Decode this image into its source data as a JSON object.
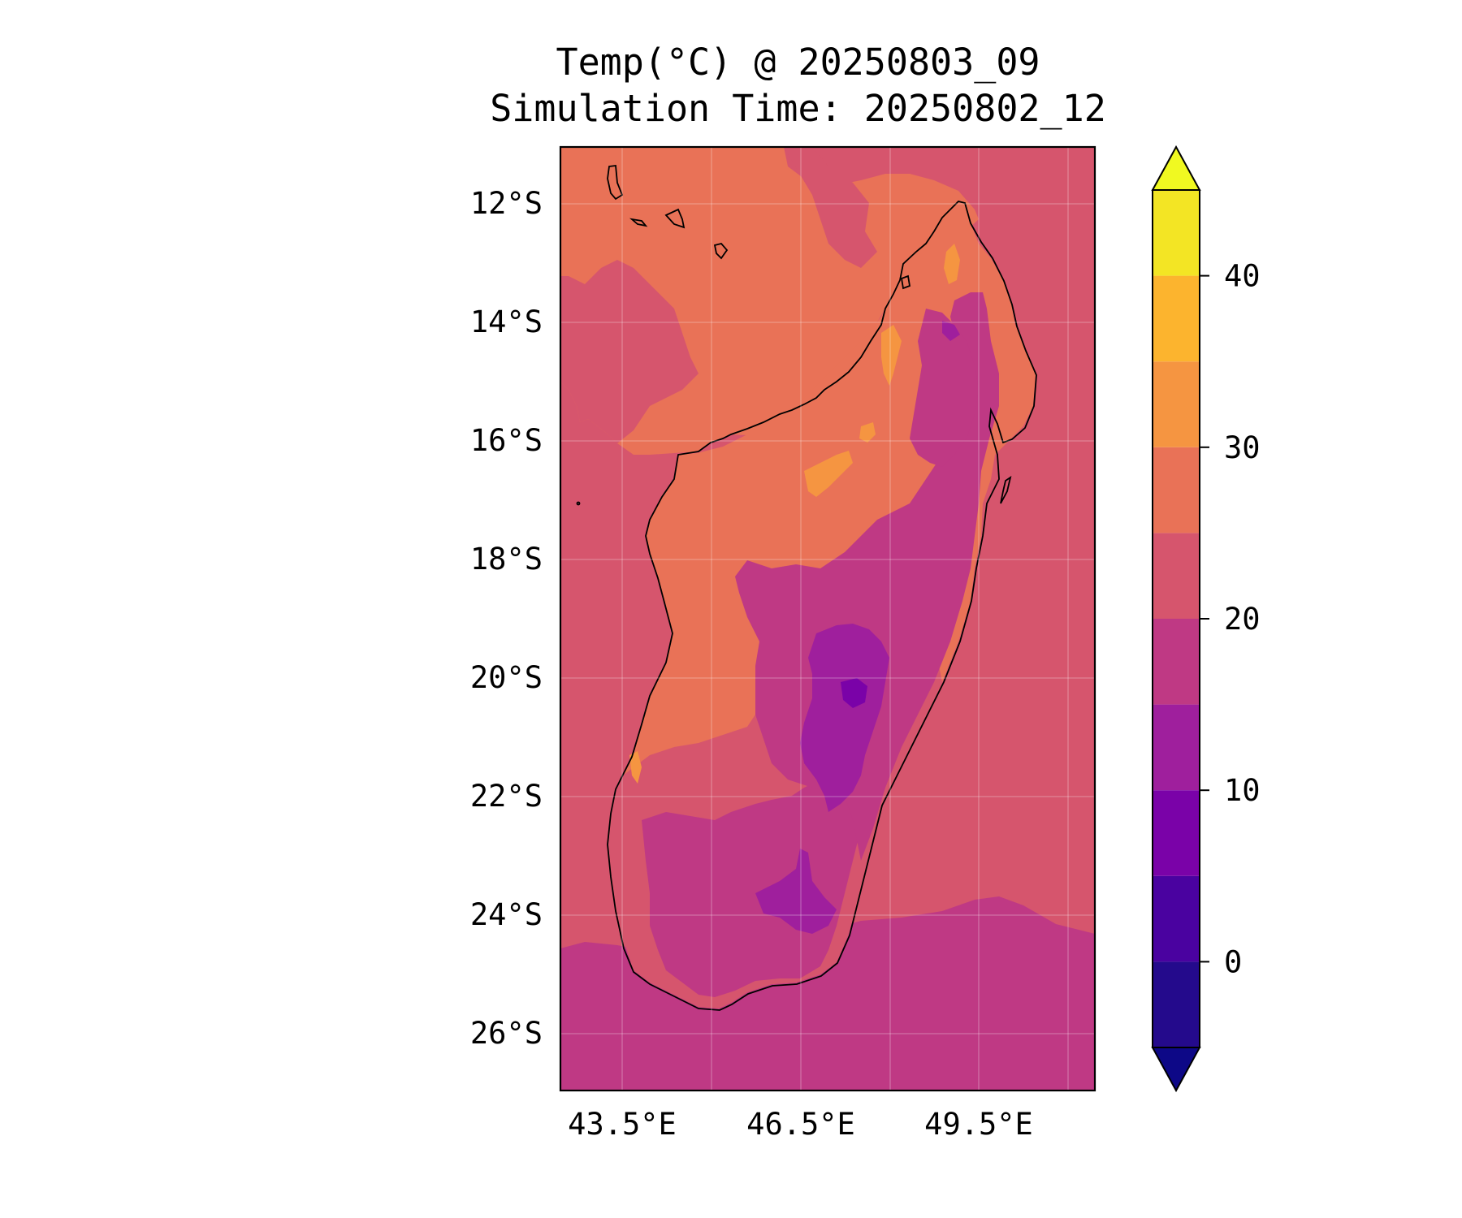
{
  "title": {
    "line1": "Temp(°C) @ 20250803_09",
    "line2": "Simulation Time: 20250802_12"
  },
  "map": {
    "region": "Madagascar",
    "lat_ticks": [
      "12°S",
      "14°S",
      "16°S",
      "18°S",
      "20°S",
      "22°S",
      "24°S",
      "26°S"
    ],
    "lon_ticks": [
      "43.5°E",
      "46.5°E",
      "49.5°E"
    ],
    "lat_range": [
      -27,
      -11.1
    ],
    "lon_range": [
      42.5,
      51.5
    ]
  },
  "colorbar": {
    "ticks": [
      "40",
      "30",
      "20",
      "10",
      "0"
    ],
    "levels": [
      -5,
      0,
      5,
      10,
      15,
      20,
      25,
      30,
      35,
      40,
      45
    ],
    "colors": [
      "#240a8c",
      "#4a02a0",
      "#7a02a8",
      "#9f1f9d",
      "#bf3984",
      "#d6556d",
      "#e97257",
      "#f59541",
      "#fcb42e",
      "#f3e524"
    ],
    "under_color": "#0d0887",
    "over_color": "#f0f921",
    "extend": "both"
  }
}
